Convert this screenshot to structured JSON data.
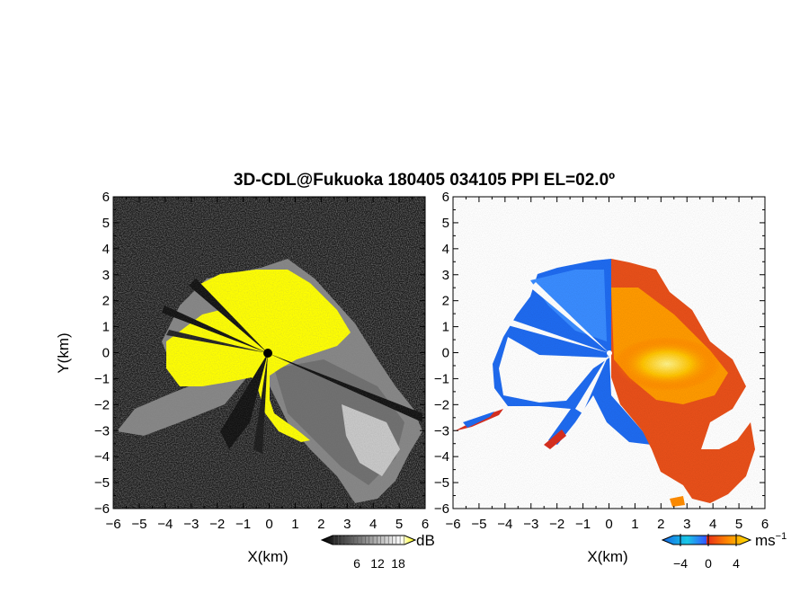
{
  "chart_data": [
    {
      "type": "heatmap",
      "title": "3D-CDL@Fukuoka 180405 034105 PPI EL=02.0º",
      "xlabel": "X(km)",
      "ylabel": "Y(km)",
      "xlim": [
        -6,
        6
      ],
      "ylim": [
        -6,
        6
      ],
      "xticks": [
        "−6",
        "−5",
        "−4",
        "−3",
        "−2",
        "−1",
        "0",
        "1",
        "2",
        "3",
        "4",
        "5",
        "6"
      ],
      "yticks": [
        "6",
        "5",
        "4",
        "3",
        "2",
        "1",
        "0",
        "−1",
        "−2",
        "−3",
        "−4",
        "−5",
        "−6"
      ],
      "colorbar": {
        "unit": "dB",
        "ticks": [
          "6",
          "12",
          "18"
        ],
        "colors": [
          "#000000",
          "#ffffff",
          "#ffff00"
        ]
      },
      "background": "#1a1a1a"
    },
    {
      "type": "heatmap",
      "xlabel": "X(km)",
      "xlim": [
        -6,
        6
      ],
      "ylim": [
        -6,
        6
      ],
      "xticks": [
        "−6",
        "−5",
        "−4",
        "−3",
        "−2",
        "−1",
        "0",
        "1",
        "2",
        "3",
        "4",
        "5",
        "6"
      ],
      "yticks": [
        "6",
        "5",
        "4",
        "3",
        "2",
        "1",
        "0",
        "−1",
        "−2",
        "−3",
        "−4",
        "−5",
        "−6"
      ],
      "colorbar": {
        "unit": "ms",
        "unit_exponent": "−1",
        "ticks": [
          "−4",
          "0",
          "4"
        ],
        "colors": [
          "#2a5cff",
          "#19c8e6",
          "#e62a1a",
          "#ff8c00",
          "#ffe600"
        ]
      },
      "background": "#ffffff"
    }
  ]
}
